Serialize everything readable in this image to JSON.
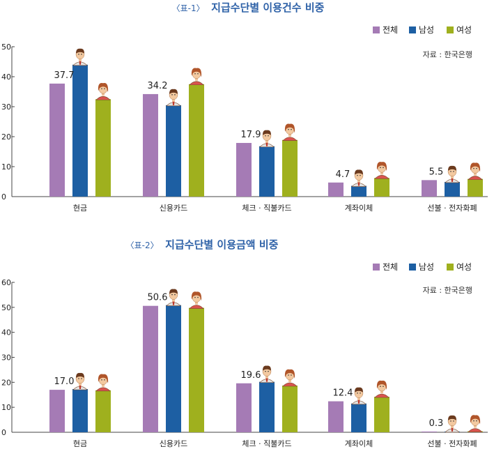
{
  "legend": {
    "items": [
      {
        "label": "전체",
        "color": "#a57bb5"
      },
      {
        "label": "남성",
        "color": "#1d5fa3"
      },
      {
        "label": "여성",
        "color": "#9fb01e"
      }
    ]
  },
  "source": "자료 : 한국은행",
  "chart_data": [
    {
      "type": "bar",
      "title_prefix": "〈표-1〉",
      "title": "지급수단별 이용건수 비중",
      "categories": [
        "현금",
        "신용카드",
        "체크 · 직불카드",
        "계좌이체",
        "선불 · 전자화폐"
      ],
      "series": [
        {
          "name": "전체",
          "values": [
            37.7,
            34.2,
            17.9,
            4.7,
            5.5
          ]
        },
        {
          "name": "남성",
          "values": [
            44.0,
            30.5,
            16.8,
            3.6,
            4.9
          ]
        },
        {
          "name": "여성",
          "values": [
            32.5,
            37.5,
            18.9,
            6.2,
            5.9
          ]
        }
      ],
      "data_labels": [
        "37.7",
        "34.2",
        "17.9",
        "4.7",
        "5.5"
      ],
      "yticks": [
        0,
        10,
        20,
        30,
        40,
        50
      ],
      "ylim": [
        0,
        50
      ],
      "grid": false,
      "legend_position": "top-right"
    },
    {
      "type": "bar",
      "title_prefix": "〈표-2〉",
      "title": "지급수단별 이용금액 비중",
      "categories": [
        "현금",
        "신용카드",
        "체크 · 직불카드",
        "계좌이체",
        "선불 · 전자화폐"
      ],
      "series": [
        {
          "name": "전체",
          "values": [
            17.0,
            50.6,
            19.6,
            12.4,
            0.3
          ]
        },
        {
          "name": "남성",
          "values": [
            17.3,
            50.9,
            20.2,
            11.5,
            0.3
          ]
        },
        {
          "name": "여성",
          "values": [
            16.8,
            49.8,
            18.7,
            14.2,
            0.4
          ]
        }
      ],
      "data_labels": [
        "17.0",
        "50.6",
        "19.6",
        "12.4",
        "0.3"
      ],
      "yticks": [
        0,
        10,
        20,
        30,
        40,
        50,
        60
      ],
      "ylim": [
        0,
        60
      ],
      "grid": false,
      "legend_position": "top-right"
    }
  ]
}
